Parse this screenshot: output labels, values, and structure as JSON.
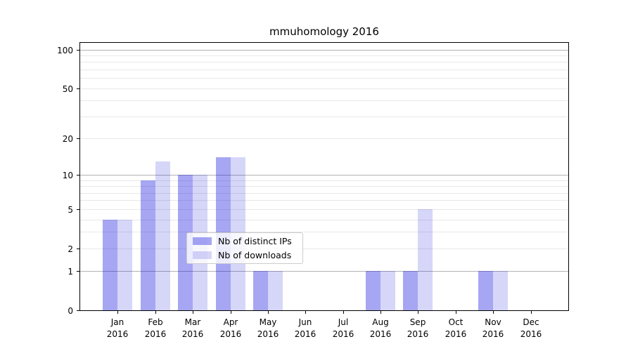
{
  "chart_data": {
    "type": "bar",
    "title": "mmuhomology 2016",
    "year_label": "2016",
    "categories": [
      "Jan",
      "Feb",
      "Mar",
      "Apr",
      "May",
      "Jun",
      "Jul",
      "Aug",
      "Sep",
      "Oct",
      "Nov",
      "Dec"
    ],
    "series": [
      {
        "name": "Nb of distinct IPs",
        "color": "rgba(0,0,220,0.35)",
        "values": [
          4,
          9,
          10,
          14,
          1,
          0,
          0,
          1,
          1,
          0,
          1,
          0
        ]
      },
      {
        "name": "Nb of downloads",
        "color": "rgba(0,0,220,0.16)",
        "values": [
          4,
          13,
          10,
          14,
          1,
          0,
          0,
          1,
          5,
          0,
          1,
          0
        ]
      }
    ],
    "xlabel": "",
    "ylabel": "",
    "yscale": "log1p",
    "ylim": [
      0,
      113
    ],
    "yticks": [
      0,
      1,
      2,
      5,
      10,
      20,
      50,
      100
    ],
    "grid": {
      "major": [
        1,
        10,
        100
      ],
      "minor": [
        2,
        3,
        4,
        5,
        6,
        7,
        8,
        9,
        20,
        30,
        40,
        50,
        60,
        70,
        80,
        90
      ],
      "on": true
    },
    "legend_position": "lower center",
    "colors": {
      "major_grid": "#b2b2b2",
      "minor_grid": "#e8e8e8",
      "spine": "#000000",
      "background": "#ffffff"
    }
  }
}
